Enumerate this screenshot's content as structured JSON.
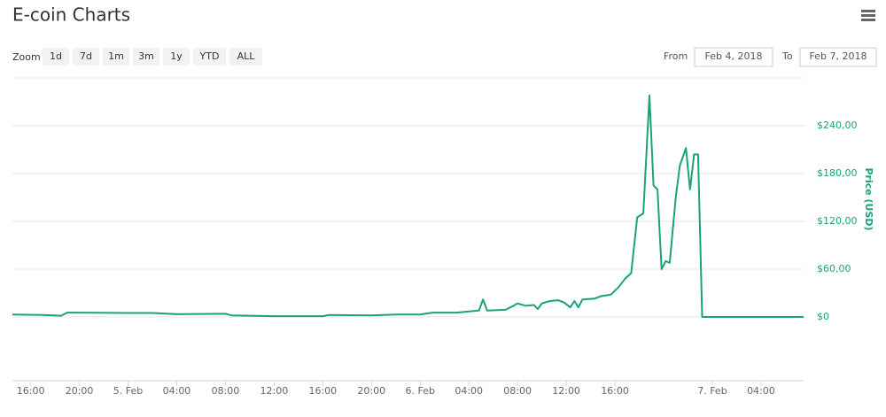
{
  "chart_data": {
    "type": "line",
    "title": "E-coin Charts",
    "zoom_label": "Zoom",
    "range_buttons": [
      "1d",
      "7d",
      "1m",
      "3m",
      "1y",
      "YTD",
      "ALL"
    ],
    "from_label": "From",
    "from_value": "Feb 4, 2018",
    "to_label": "To",
    "to_value": "Feb 7, 2018",
    "ylabel": "Price (USD)",
    "color": "#1aa37a",
    "grid": true,
    "xlim": [
      "2018-02-04T14:30",
      "2018-02-07T07:30"
    ],
    "xticks": [
      {
        "value": "2018-02-04T16:00",
        "label": "16:00"
      },
      {
        "value": "2018-02-04T20:00",
        "label": "20:00"
      },
      {
        "value": "2018-02-05T00:00",
        "label": "5. Feb"
      },
      {
        "value": "2018-02-05T04:00",
        "label": "04:00"
      },
      {
        "value": "2018-02-05T08:00",
        "label": "08:00"
      },
      {
        "value": "2018-02-05T12:00",
        "label": "12:00"
      },
      {
        "value": "2018-02-05T16:00",
        "label": "16:00"
      },
      {
        "value": "2018-02-05T20:00",
        "label": "20:00"
      },
      {
        "value": "2018-02-06T00:00",
        "label": "6. Feb"
      },
      {
        "value": "2018-02-06T04:00",
        "label": "04:00"
      },
      {
        "value": "2018-02-06T08:00",
        "label": "08:00"
      },
      {
        "value": "2018-02-06T12:00",
        "label": "12:00"
      },
      {
        "value": "2018-02-06T16:00",
        "label": "16:00"
      },
      {
        "value": "2018-02-07T00:00",
        "label": "7. Feb"
      },
      {
        "value": "2018-02-07T04:00",
        "label": "04:00"
      }
    ],
    "ylim": [
      -80,
      300
    ],
    "yticks": [
      {
        "value": 0,
        "label": "$0"
      },
      {
        "value": 60,
        "label": "$60,00"
      },
      {
        "value": 120,
        "label": "$120,00"
      },
      {
        "value": 180,
        "label": "$180,00"
      },
      {
        "value": 240,
        "label": "$240,00"
      }
    ],
    "x": [
      "2018-02-04T14:30",
      "2018-02-04T17:00",
      "2018-02-04T18:30",
      "2018-02-04T19:00",
      "2018-02-04T20:00",
      "2018-02-05T00:00",
      "2018-02-05T02:00",
      "2018-02-05T04:00",
      "2018-02-05T08:00",
      "2018-02-05T08:30",
      "2018-02-05T12:00",
      "2018-02-05T16:00",
      "2018-02-05T16:30",
      "2018-02-05T20:00",
      "2018-02-05T22:00",
      "2018-02-06T00:00",
      "2018-02-06T01:00",
      "2018-02-06T03:00",
      "2018-02-06T04:00",
      "2018-02-06T04:50",
      "2018-02-06T05:10",
      "2018-02-06T05:30",
      "2018-02-06T07:00",
      "2018-02-06T07:40",
      "2018-02-06T08:00",
      "2018-02-06T08:40",
      "2018-02-06T09:20",
      "2018-02-06T09:40",
      "2018-02-06T10:00",
      "2018-02-06T10:40",
      "2018-02-06T11:20",
      "2018-02-06T11:50",
      "2018-02-06T12:20",
      "2018-02-06T12:40",
      "2018-02-06T13:00",
      "2018-02-06T13:20",
      "2018-02-06T14:20",
      "2018-02-06T14:50",
      "2018-02-06T15:40",
      "2018-02-06T16:20",
      "2018-02-06T16:50",
      "2018-02-06T17:20",
      "2018-02-06T17:50",
      "2018-02-06T18:20",
      "2018-02-06T18:50",
      "2018-02-06T19:10",
      "2018-02-06T19:30",
      "2018-02-06T19:50",
      "2018-02-06T20:10",
      "2018-02-06T20:30",
      "2018-02-06T21:00",
      "2018-02-06T21:20",
      "2018-02-06T21:50",
      "2018-02-06T22:10",
      "2018-02-06T22:30",
      "2018-02-06T22:50",
      "2018-02-06T23:10",
      "2018-02-07T04:00",
      "2018-02-07T07:30"
    ],
    "values": [
      3,
      2.5,
      1.5,
      5.5,
      5.5,
      5,
      5,
      3.5,
      4,
      2,
      1,
      1,
      2.5,
      2,
      3,
      3,
      5.5,
      5.5,
      7,
      8,
      22,
      8,
      9,
      14,
      17,
      14,
      15,
      10,
      17,
      20,
      21,
      18,
      12,
      20,
      12,
      22,
      23,
      26,
      28,
      38,
      48,
      55,
      125,
      130,
      278,
      165,
      160,
      60,
      70,
      68,
      150,
      190,
      212,
      160,
      204,
      204,
      0,
      0,
      0
    ]
  }
}
